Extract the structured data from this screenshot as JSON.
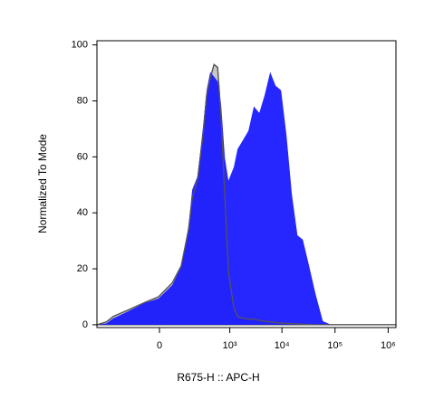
{
  "chart_data": {
    "type": "histogram-overlay",
    "xlabel": "R675-H :: APC-H",
    "ylabel": "Normalized To Mode",
    "xscale": "biex",
    "x": [
      -700,
      -450,
      -320,
      -160,
      -44,
      -2,
      37,
      78,
      126,
      156,
      210,
      280,
      335,
      400,
      480,
      570,
      670,
      800,
      940,
      1200,
      1420,
      1810,
      2300,
      2930,
      3720,
      4720,
      5990,
      7590,
      9630,
      12200,
      15400,
      19600,
      24800,
      31400,
      43000,
      59000,
      84000,
      1400000
    ],
    "series": [
      {
        "color": "#c8c8c8",
        "values": [
          0,
          1,
          3,
          5,
          8,
          10,
          15,
          21,
          34,
          45,
          52,
          68,
          82,
          88,
          93,
          92,
          74,
          45,
          19,
          6,
          3,
          2.3,
          2,
          2,
          1.6,
          1.2,
          1,
          0.8,
          0.6,
          0.5,
          0.4,
          0.3,
          0.2,
          0.1,
          0,
          0,
          0,
          0
        ]
      },
      {
        "color": "#1414ff",
        "values": [
          0,
          0.5,
          2.3,
          4.5,
          7.8,
          9.4,
          14.2,
          20.7,
          35.3,
          48.2,
          53.1,
          70.9,
          83.8,
          90.3,
          88.7,
          87,
          79,
          59.5,
          51.5,
          56.3,
          62.8,
          66,
          69.3,
          78,
          75.7,
          82.2,
          90.3,
          85.4,
          83.8,
          67.6,
          46.6,
          32,
          30.4,
          22.3,
          11,
          1.3,
          0,
          0
        ]
      }
    ],
    "xlim": [
      -700,
      1400000
    ],
    "ylim": [
      -1,
      101.5
    ],
    "xticks": [
      0,
      {
        "value": 1000,
        "label": "10³"
      },
      {
        "value": 10000,
        "label": "10⁴"
      },
      {
        "value": 100000,
        "label": "10⁵"
      },
      {
        "value": 1000000,
        "label": "10⁶"
      }
    ],
    "yticks": [
      0,
      20,
      40,
      60,
      80,
      100
    ]
  }
}
